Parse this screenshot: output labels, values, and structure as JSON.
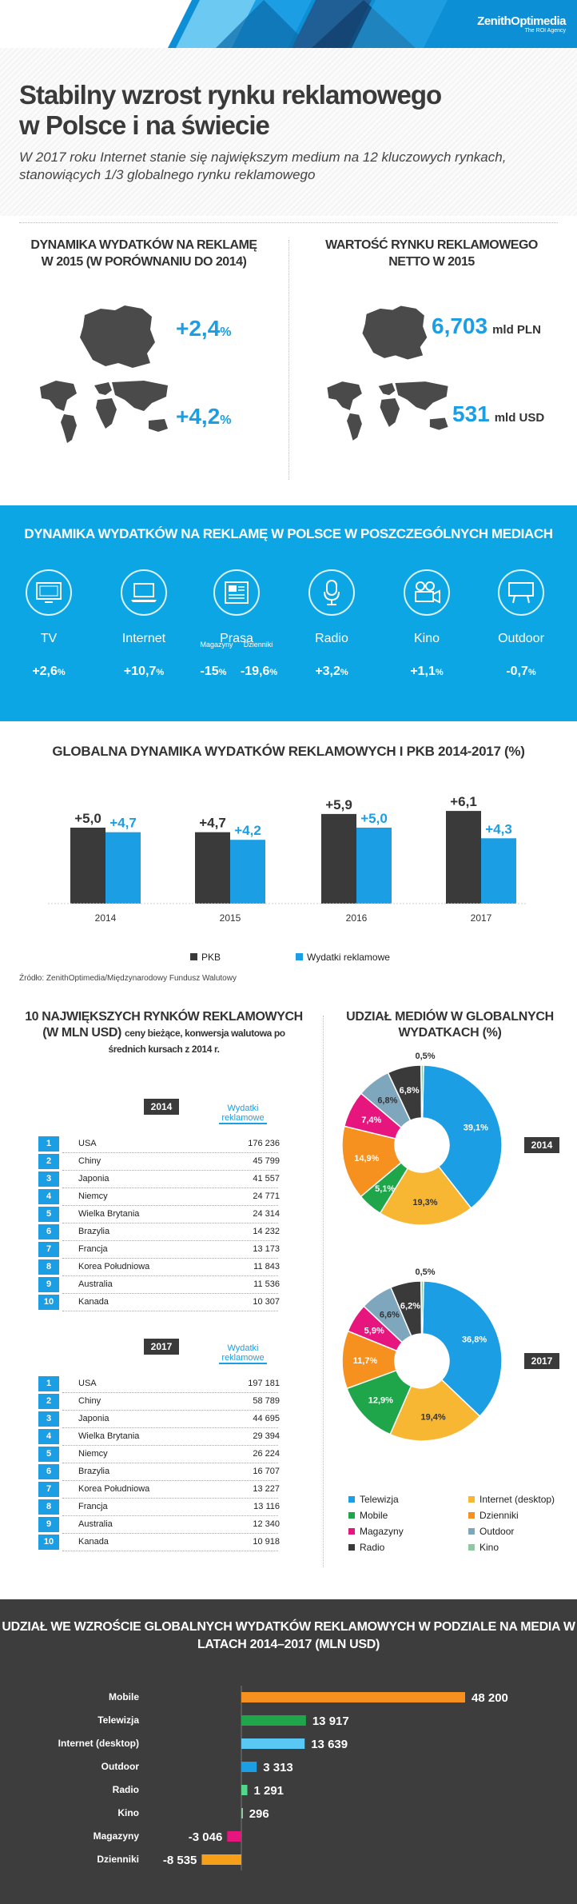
{
  "brand": {
    "name": "ZenithOptimedia",
    "tagline": "The ROI Agency"
  },
  "header": {
    "title": "Stabilny wzrost rynku reklamowego w Polsce i na świecie",
    "subtitle": "W 2017 roku Internet stanie się największym medium na 12 kluczowych rynkach, stanowiących 1/3 globalnego rynku reklamowego"
  },
  "dynamics": {
    "title": "DYNAMIKA WYDATKÓW NA REKLAMĘ W 2015 (W PORÓWNANIU DO 2014)",
    "poland": "+2,4",
    "world": "+4,2",
    "pct": "%"
  },
  "market_value": {
    "title": "WARTOŚĆ RYNKU REKLAMOWEGO NETTO W 2015",
    "pln_value": "6,703",
    "pln_unit": "mld PLN",
    "usd_value": "531",
    "usd_unit": "mld USD"
  },
  "media_poland": {
    "title": "DYNAMIKA WYDATKÓW NA REKLAMĘ W POLSCE W POSZCZEGÓLNYCH MEDIACH",
    "items": [
      {
        "name": "TV",
        "value": "+2,6",
        "icon": "tv-icon"
      },
      {
        "name": "Internet",
        "value": "+10,7",
        "icon": "laptop-icon"
      },
      {
        "name": "Prasa",
        "value": "",
        "icon": "newspaper-icon",
        "sub": [
          {
            "label": "Magazyny",
            "value": "-15"
          },
          {
            "label": "Dzienniki",
            "value": "-19,6"
          }
        ]
      },
      {
        "name": "Radio",
        "value": "+3,2",
        "icon": "microphone-icon"
      },
      {
        "name": "Kino",
        "value": "+1,1",
        "icon": "camera-icon"
      },
      {
        "name": "Outdoor",
        "value": "-0,7",
        "icon": "billboard-icon"
      }
    ],
    "pct": "%"
  },
  "gdp_section": {
    "title": "GLOBALNA DYNAMIKA WYDATKÓW REKLAMOWYCH I PKB 2014-2017 (%)",
    "source": "Źródło: ZenithOptimedia/Międzynarodowy Fundusz Walutowy"
  },
  "top10": {
    "title": "10 NAJWIĘKSZYCH RYNKÓW REKLAMOWYCH (W MLN USD)",
    "note": "ceny bieżące, konwersja walutowa po średnich kursach z 2014 r.",
    "spend_header": "Wydatki reklamowe",
    "y2014": {
      "year": "2014",
      "rows": [
        {
          "rank": "1",
          "country": "USA",
          "value": "176 236"
        },
        {
          "rank": "2",
          "country": "Chiny",
          "value": "45 799"
        },
        {
          "rank": "3",
          "country": "Japonia",
          "value": "41 557"
        },
        {
          "rank": "4",
          "country": "Niemcy",
          "value": "24 771"
        },
        {
          "rank": "5",
          "country": "Wielka Brytania",
          "value": "24 314"
        },
        {
          "rank": "6",
          "country": "Brazylia",
          "value": "14 232"
        },
        {
          "rank": "7",
          "country": "Francja",
          "value": "13 173"
        },
        {
          "rank": "8",
          "country": "Korea Południowa",
          "value": "11 843"
        },
        {
          "rank": "9",
          "country": "Australia",
          "value": "11 536"
        },
        {
          "rank": "10",
          "country": "Kanada",
          "value": "10 307"
        }
      ]
    },
    "y2017": {
      "year": "2017",
      "rows": [
        {
          "rank": "1",
          "country": "USA",
          "value": "197 181"
        },
        {
          "rank": "2",
          "country": "Chiny",
          "value": "58 789"
        },
        {
          "rank": "3",
          "country": "Japonia",
          "value": "44 695"
        },
        {
          "rank": "4",
          "country": "Wielka Brytania",
          "value": "29 394"
        },
        {
          "rank": "5",
          "country": "Niemcy",
          "value": "26 224"
        },
        {
          "rank": "6",
          "country": "Brazylia",
          "value": "16 707"
        },
        {
          "rank": "7",
          "country": "Korea Południowa",
          "value": "13 227"
        },
        {
          "rank": "8",
          "country": "Francja",
          "value": "13 116"
        },
        {
          "rank": "9",
          "country": "Australia",
          "value": "12 340"
        },
        {
          "rank": "10",
          "country": "Kanada",
          "value": "10 918"
        }
      ]
    }
  },
  "share": {
    "title": "UDZIAŁ MEDIÓW W GLOBALNYCH WYDATKACH (%)"
  },
  "growth": {
    "title": "UDZIAŁ WE WZROŚCIE GLOBALNYCH WYDATKÓW REKLAMOWYCH W PODZIALE NA MEDIA W LATACH 2014–2017 (MLN USD)"
  },
  "colors": {
    "blue": "#1b9ee3",
    "dark": "#3a3a3a",
    "orange": "#f6a01a",
    "green": "#1fa64a",
    "light_blue": "#5ac8f5",
    "magenta": "#e6167e",
    "gray_blue": "#7ea6bd",
    "yellow": "#f7b733",
    "light_green": "#53d88b"
  },
  "chart_data": [
    {
      "type": "bar",
      "title": "GLOBALNA DYNAMIKA WYDATKÓW REKLAMOWYCH I PKB 2014-2017 (%)",
      "categories": [
        "2014",
        "2015",
        "2016",
        "2017"
      ],
      "series": [
        {
          "name": "PKB",
          "values": [
            5.0,
            4.7,
            5.9,
            6.1
          ],
          "labels": [
            "+5,0",
            "+4,7",
            "+5,9",
            "+6,1"
          ],
          "color": "#3a3a3a"
        },
        {
          "name": "Wydatki reklamowe",
          "values": [
            4.7,
            4.2,
            5.0,
            4.3
          ],
          "labels": [
            "+4,7",
            "+4,2",
            "+5,0",
            "+4,3"
          ],
          "color": "#1b9ee3"
        }
      ],
      "ylim": [
        0,
        7
      ]
    },
    {
      "type": "pie",
      "year": "2014",
      "slices": [
        {
          "name": "Telewizja",
          "value": 39.1,
          "label": "39,1%",
          "color": "#1b9ee3"
        },
        {
          "name": "Internet (desktop)",
          "value": 19.3,
          "label": "19,3%",
          "color": "#f7b733"
        },
        {
          "name": "Mobile",
          "value": 5.1,
          "label": "5,1%",
          "color": "#1fa64a"
        },
        {
          "name": "Dzienniki",
          "value": 14.9,
          "label": "14,9%",
          "color": "#f6901e"
        },
        {
          "name": "Magazyny",
          "value": 7.4,
          "label": "7,4%",
          "color": "#e6167e"
        },
        {
          "name": "Outdoor",
          "value": 6.8,
          "label": "6,8%",
          "color": "#7ea6bd"
        },
        {
          "name": "Radio",
          "value": 6.8,
          "label": "6,8%",
          "color": "#3a3a3a"
        },
        {
          "name": "Kino",
          "value": 0.5,
          "label": "0,5%",
          "color": "#8fc9a3"
        }
      ]
    },
    {
      "type": "pie",
      "year": "2017",
      "slices": [
        {
          "name": "Telewizja",
          "value": 36.8,
          "label": "36,8%",
          "color": "#1b9ee3"
        },
        {
          "name": "Internet (desktop)",
          "value": 19.4,
          "label": "19,4%",
          "color": "#f7b733"
        },
        {
          "name": "Mobile",
          "value": 12.9,
          "label": "12,9%",
          "color": "#1fa64a"
        },
        {
          "name": "Dzienniki",
          "value": 11.7,
          "label": "11,7%",
          "color": "#f6901e"
        },
        {
          "name": "Magazyny",
          "value": 5.9,
          "label": "5,9%",
          "color": "#e6167e"
        },
        {
          "name": "Outdoor",
          "value": 6.6,
          "label": "6,6%",
          "color": "#7ea6bd"
        },
        {
          "name": "Radio",
          "value": 6.2,
          "label": "6,2%",
          "color": "#3a3a3a"
        },
        {
          "name": "Kino",
          "value": 0.5,
          "label": "0,5%",
          "color": "#8fc9a3"
        }
      ]
    },
    {
      "type": "bar",
      "orientation": "horizontal",
      "title": "UDZIAŁ WE WZROŚCIE GLOBALNYCH WYDATKÓW REKLAMOWYCH W PODZIALE NA MEDIA W LATACH 2014–2017 (MLN USD)",
      "categories": [
        "Mobile",
        "Telewizja",
        "Internet (desktop)",
        "Outdoor",
        "Radio",
        "Kino",
        "Magazyny",
        "Dzienniki"
      ],
      "values": [
        48200,
        13917,
        13639,
        3313,
        1291,
        296,
        -3046,
        -8535
      ],
      "labels": [
        "48 200",
        "13 917",
        "13 639",
        "3 313",
        "1 291",
        "296",
        "-3 046",
        "-8 535"
      ],
      "colors": [
        "#f6901e",
        "#1fa64a",
        "#5ac8f5",
        "#1b9ee3",
        "#53d88b",
        "#8fc9a3",
        "#e6167e",
        "#f6a01a"
      ]
    }
  ]
}
